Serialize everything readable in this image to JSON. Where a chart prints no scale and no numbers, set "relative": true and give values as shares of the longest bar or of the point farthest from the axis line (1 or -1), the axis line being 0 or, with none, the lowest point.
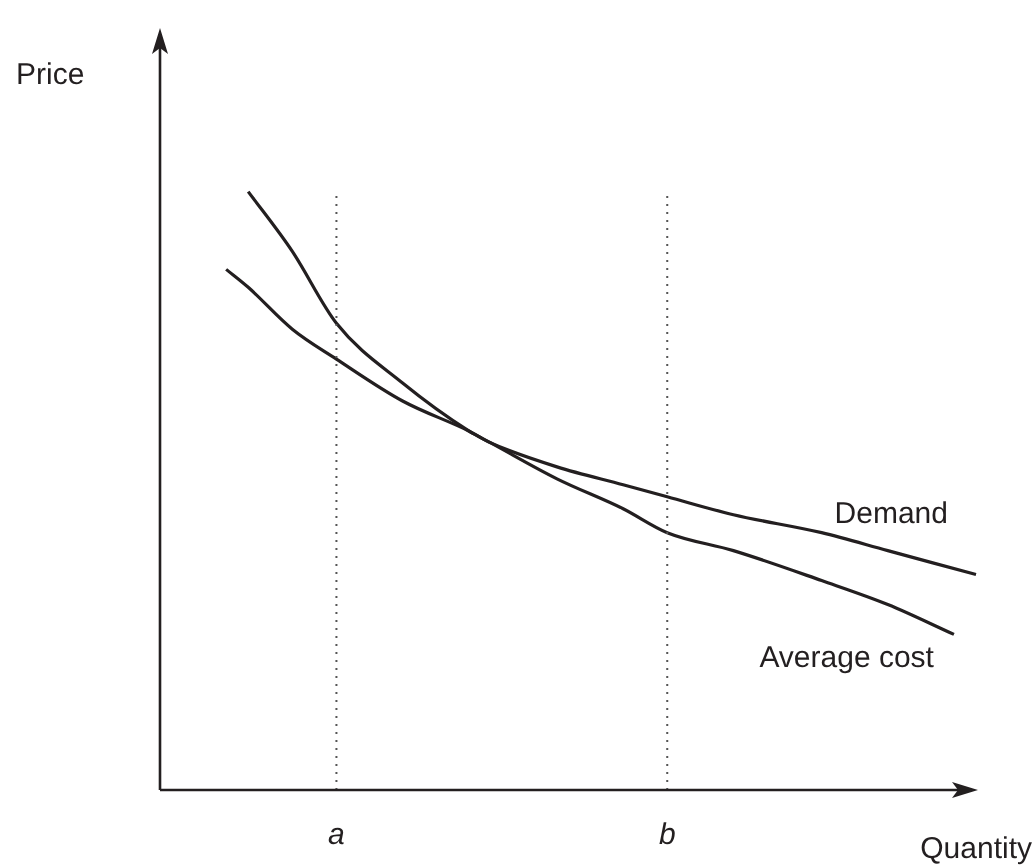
{
  "chart_data": {
    "type": "line",
    "relative": true,
    "xlabel": "Quantity",
    "ylabel": "Price",
    "legend": false,
    "grid": false,
    "marker": "none",
    "line_style": "solid",
    "categories": [
      null,
      null,
      null,
      null,
      null,
      null,
      null,
      null,
      "a",
      null,
      null,
      null,
      null,
      null,
      null,
      null,
      null,
      null,
      null,
      null,
      null,
      null,
      null,
      "b",
      null,
      null,
      null,
      null,
      null,
      null,
      null,
      null,
      null,
      null,
      null,
      null,
      null,
      null
    ],
    "series": [
      {
        "name": "Demand",
        "color": "#231f20",
        "values": [
          null,
          null,
          null,
          0.87,
          0.84,
          null,
          0.77,
          null,
          0.72,
          null,
          null,
          0.65,
          null,
          null,
          0.6,
          0.58,
          null,
          null,
          0.54,
          null,
          null,
          0.51,
          null,
          0.49,
          null,
          null,
          0.46,
          null,
          null,
          null,
          0.43,
          null,
          null,
          0.4,
          null,
          null,
          null,
          0.36
        ]
      },
      {
        "name": "Average cost",
        "color": "#231f20",
        "values": [
          null,
          null,
          null,
          null,
          1,
          null,
          0.9,
          null,
          0.78,
          null,
          null,
          0.68,
          null,
          null,
          0.6,
          0.58,
          null,
          null,
          0.52,
          null,
          null,
          0.47,
          null,
          0.43,
          null,
          null,
          0.4,
          null,
          null,
          null,
          0.35,
          null,
          null,
          0.31,
          null,
          null,
          0.26,
          null
        ]
      }
    ],
    "ref_lines": [
      {
        "axis": "x",
        "value": "a",
        "line_style": "dotted",
        "color": "#555555"
      },
      {
        "axis": "x",
        "value": "b",
        "line_style": "dotted",
        "color": "#555555"
      }
    ]
  }
}
